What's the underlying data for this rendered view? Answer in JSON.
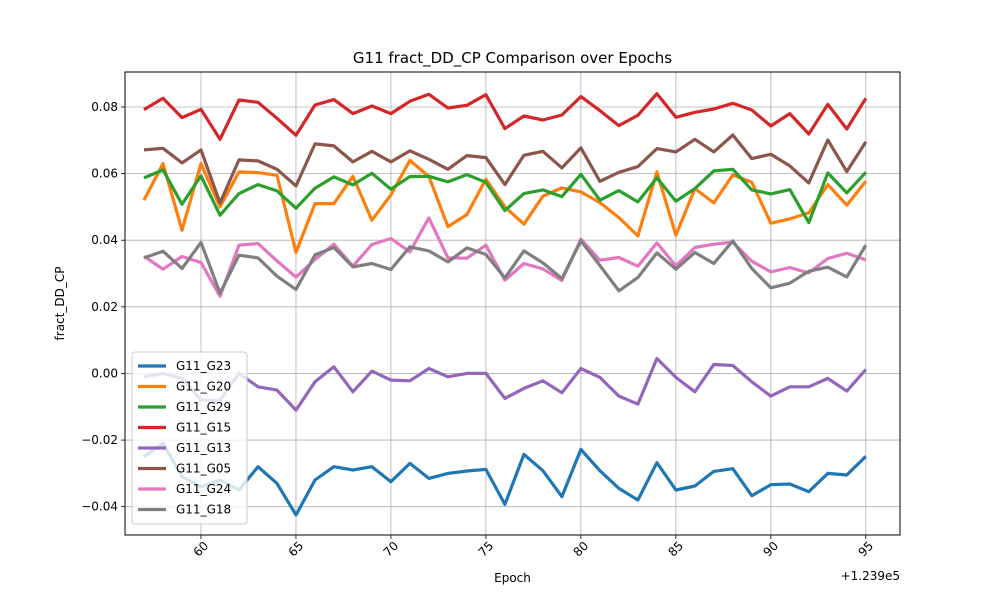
{
  "chart_data": {
    "type": "line",
    "title": "G11 fract_DD_CP Comparison over Epochs",
    "xlabel": "Epoch",
    "ylabel": "fract_DD_CP",
    "x_offset_label": "+1.239e5",
    "x_ticks": [
      60,
      65,
      70,
      75,
      80,
      85,
      90,
      95
    ],
    "y_ticks": [
      -0.04,
      -0.02,
      0.0,
      0.02,
      0.04,
      0.06,
      0.08
    ],
    "y_tick_labels": [
      "−0.04",
      "−0.02",
      "0.00",
      "0.02",
      "0.04",
      "0.06",
      "0.08"
    ],
    "xlim": [
      56,
      96.8
    ],
    "ylim": [
      -0.0485,
      0.0905
    ],
    "grid": true,
    "legend": "lower-left",
    "x": [
      57,
      58,
      59,
      60,
      61,
      62,
      63,
      64,
      65,
      66,
      67,
      68,
      69,
      70,
      71,
      72,
      73,
      74,
      75,
      76,
      77,
      78,
      79,
      80,
      81,
      82,
      83,
      84,
      85,
      86,
      87,
      88,
      89,
      90,
      91,
      92,
      93,
      94,
      95
    ],
    "series": [
      {
        "name": "G11_G23",
        "color": "#1f77b4",
        "values": [
          -0.025,
          -0.021,
          -0.031,
          -0.034,
          -0.032,
          -0.035,
          -0.028,
          -0.033,
          -0.0425,
          -0.032,
          -0.028,
          -0.029,
          -0.028,
          -0.0325,
          -0.027,
          -0.0315,
          -0.03,
          -0.0293,
          -0.0288,
          -0.0393,
          -0.0243,
          -0.0292,
          -0.037,
          -0.0228,
          -0.0292,
          -0.0345,
          -0.038,
          -0.0268,
          -0.035,
          -0.0338,
          -0.0294,
          -0.0286,
          -0.0367,
          -0.0334,
          -0.0332,
          -0.0355,
          -0.03,
          -0.0305,
          -0.0249
        ]
      },
      {
        "name": "G11_G20",
        "color": "#ff7f0e",
        "values": [
          0.052,
          0.063,
          0.043,
          0.063,
          0.05,
          0.0605,
          0.0603,
          0.0595,
          0.0363,
          0.051,
          0.051,
          0.0592,
          0.046,
          0.0536,
          0.064,
          0.0591,
          0.0441,
          0.0477,
          0.0583,
          0.05,
          0.0448,
          0.0532,
          0.0557,
          0.0545,
          0.0513,
          0.0468,
          0.0413,
          0.0605,
          0.0415,
          0.0555,
          0.0512,
          0.0596,
          0.0574,
          0.0451,
          0.0464,
          0.0482,
          0.0567,
          0.0505,
          0.0577
        ]
      },
      {
        "name": "G11_G29",
        "color": "#2ca02c",
        "values": [
          0.0587,
          0.0611,
          0.0508,
          0.0593,
          0.0475,
          0.054,
          0.0567,
          0.0548,
          0.0496,
          0.0556,
          0.059,
          0.0566,
          0.0601,
          0.0553,
          0.0591,
          0.0592,
          0.0575,
          0.0597,
          0.0574,
          0.0489,
          0.054,
          0.0551,
          0.0531,
          0.0598,
          0.052,
          0.0549,
          0.0515,
          0.0587,
          0.0517,
          0.0555,
          0.0608,
          0.0613,
          0.0551,
          0.0539,
          0.0552,
          0.0453,
          0.0602,
          0.0542,
          0.0604
        ]
      },
      {
        "name": "G11_G15",
        "color": "#d62728",
        "values": [
          0.0792,
          0.0826,
          0.0768,
          0.0793,
          0.0703,
          0.0821,
          0.0814,
          0.0766,
          0.0715,
          0.0806,
          0.0822,
          0.078,
          0.0803,
          0.078,
          0.0817,
          0.0838,
          0.0797,
          0.0805,
          0.0837,
          0.0735,
          0.0773,
          0.0761,
          0.0776,
          0.0831,
          0.0789,
          0.0744,
          0.0775,
          0.084,
          0.0769,
          0.0784,
          0.0794,
          0.0811,
          0.0791,
          0.0743,
          0.078,
          0.0719,
          0.0808,
          0.0734,
          0.0826
        ]
      },
      {
        "name": "G11_G13",
        "color": "#9467bd",
        "values": [
          -0.001,
          0.0,
          -0.0015,
          -0.008,
          -0.008,
          0.0,
          -0.004,
          -0.005,
          -0.011,
          -0.0025,
          0.002,
          -0.0055,
          0.0007,
          -0.002,
          -0.0022,
          0.0015,
          -0.001,
          0.0,
          0.0,
          -0.0075,
          -0.0045,
          -0.0022,
          -0.0058,
          0.0015,
          -0.0012,
          -0.0068,
          -0.0092,
          0.0045,
          -0.0012,
          -0.0055,
          0.0027,
          0.0024,
          -0.0025,
          -0.0068,
          -0.004,
          -0.004,
          -0.0015,
          -0.0053,
          0.0012
        ]
      },
      {
        "name": "G11_G05",
        "color": "#8c564b",
        "values": [
          0.0671,
          0.0676,
          0.0632,
          0.0671,
          0.0512,
          0.0641,
          0.0638,
          0.0613,
          0.0563,
          0.0689,
          0.0683,
          0.0635,
          0.0667,
          0.0635,
          0.0668,
          0.0643,
          0.0613,
          0.0654,
          0.0648,
          0.0567,
          0.0655,
          0.0667,
          0.0617,
          0.0677,
          0.0577,
          0.0604,
          0.0621,
          0.0675,
          0.0665,
          0.0703,
          0.0665,
          0.0716,
          0.0645,
          0.0658,
          0.0623,
          0.0572,
          0.0701,
          0.0606,
          0.0695
        ]
      },
      {
        "name": "G11_G24",
        "color": "#e377c2",
        "values": [
          0.0352,
          0.0313,
          0.0351,
          0.0333,
          0.0232,
          0.0385,
          0.039,
          0.0338,
          0.0289,
          0.0342,
          0.0388,
          0.0322,
          0.0387,
          0.0405,
          0.0365,
          0.0467,
          0.0347,
          0.0346,
          0.0385,
          0.028,
          0.033,
          0.0314,
          0.0279,
          0.0403,
          0.034,
          0.0348,
          0.0322,
          0.0392,
          0.0323,
          0.0378,
          0.0388,
          0.0394,
          0.0337,
          0.0305,
          0.0318,
          0.0302,
          0.0345,
          0.0361,
          0.0341
        ]
      },
      {
        "name": "G11_G18",
        "color": "#7f7f7f",
        "values": [
          0.0347,
          0.0367,
          0.0315,
          0.0393,
          0.0241,
          0.0355,
          0.0347,
          0.0292,
          0.0252,
          0.0356,
          0.0378,
          0.032,
          0.033,
          0.0312,
          0.038,
          0.0368,
          0.0335,
          0.0377,
          0.0357,
          0.0287,
          0.0368,
          0.0332,
          0.0285,
          0.0398,
          0.0324,
          0.0248,
          0.0288,
          0.0362,
          0.0313,
          0.0363,
          0.033,
          0.0398,
          0.0315,
          0.0257,
          0.0271,
          0.0307,
          0.0319,
          0.029,
          0.0385
        ]
      }
    ]
  }
}
